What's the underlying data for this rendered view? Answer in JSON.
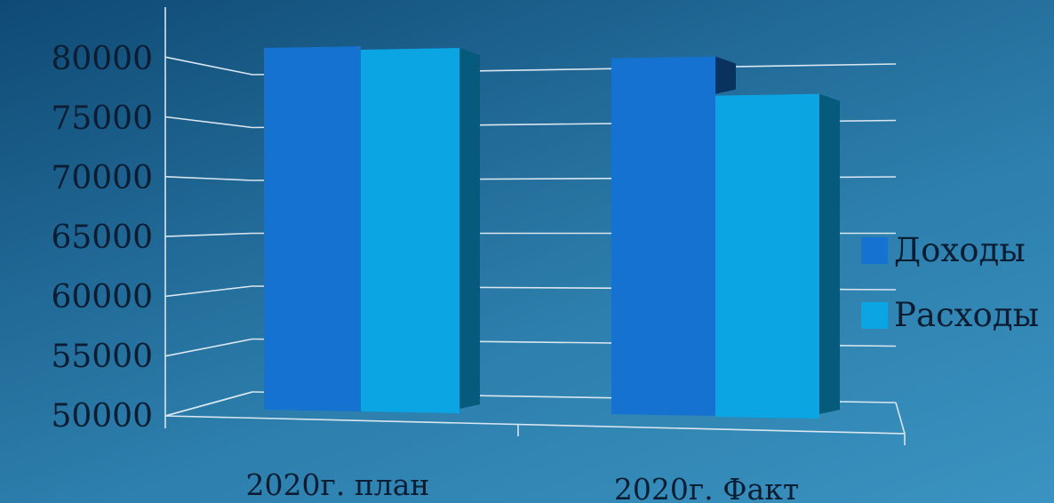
{
  "chart_data": {
    "type": "bar",
    "categories": [
      "2020г. план",
      "2020г. Факт"
    ],
    "series": [
      {
        "name": "Доходы",
        "values": [
          81500,
          81000
        ],
        "color": "#1572d0"
      },
      {
        "name": "Расходы",
        "values": [
          81500,
          78000
        ],
        "color": "#0aa5e2"
      }
    ],
    "y_ticks": [
      "50000",
      "55000",
      "60000",
      "65000",
      "70000",
      "75000",
      "80000"
    ],
    "ylim": [
      50000,
      80000
    ],
    "grid": true,
    "legend_position": "right",
    "style": "3d"
  }
}
